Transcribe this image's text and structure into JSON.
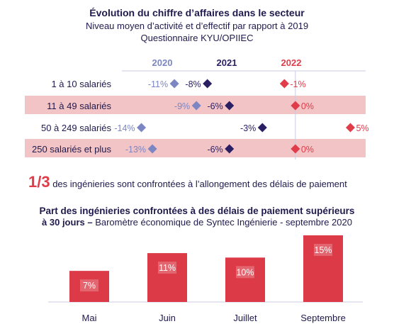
{
  "colors": {
    "y2020": "#7b86c2",
    "y2021": "#2a1f63",
    "y2022": "#e03c4a",
    "band": "#f2c4c6",
    "bar": "#dc3a47",
    "text": "#1f1a4d"
  },
  "header": {
    "title": "Évolution du chiffre d’affaires dans le secteur",
    "subtitle1": "Niveau moyen d’activité et d’effectif par rapport à 2019",
    "subtitle2": "Questionnaire KYU/OPIIEC"
  },
  "callout": {
    "big": "1/3",
    "text": " des ingénieries sont confrontées à l’allongement des délais de paiement"
  },
  "bar_header": {
    "title_line1": "Part des ingénieries confrontées à des délais de paiement supérieurs",
    "title_line2_bold": "à 30 jours –",
    "title_line2_rest": " Baromètre économique de Syntec Ingénierie - septembre 2020"
  },
  "chart_data": [
    {
      "type": "scatter",
      "title": "Évolution du chiffre d’affaires dans le secteur",
      "categories": [
        "1 à 10 salariés",
        "11 à 49 salariés",
        "50 à 249 salariés",
        "250 salariés et plus"
      ],
      "series": [
        {
          "name": "2020",
          "values": [
            -11,
            -9,
            -14,
            -13
          ],
          "labels": [
            "-11%",
            "-9%",
            "-14%",
            "-13%"
          ]
        },
        {
          "name": "2021",
          "values": [
            -8,
            -6,
            -3,
            -6
          ],
          "labels": [
            "-8%",
            "-6%",
            "-3%",
            "-6%"
          ]
        },
        {
          "name": "2022",
          "values": [
            -1,
            0,
            5,
            0
          ],
          "labels": [
            "-1%",
            "0%",
            "5%",
            "0%"
          ]
        }
      ],
      "xlim": [
        -15,
        6
      ],
      "banded_rows": [
        false,
        true,
        false,
        true
      ]
    },
    {
      "type": "bar",
      "title": "Part des ingénieries confrontées à des délais de paiement supérieurs à 30 jours",
      "categories": [
        "Mai",
        "Juin",
        "Juillet",
        "Septembre"
      ],
      "values": [
        7,
        11,
        10,
        15
      ],
      "labels": [
        "7%",
        "11%",
        "10%",
        "15%"
      ],
      "ylim": [
        0,
        15
      ]
    }
  ]
}
